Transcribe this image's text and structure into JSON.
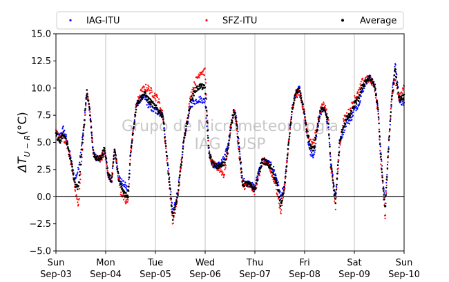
{
  "chart_data": {
    "type": "scatter",
    "ylabel_main": "ΔT",
    "ylabel_sub": "U − R",
    "ylabel_unit": "(°C)",
    "ylim": [
      -5.0,
      15.0
    ],
    "yticks": [
      "−5.0",
      "−2.5",
      "0.0",
      "2.5",
      "5.0",
      "7.5",
      "10.0",
      "12.5",
      "15.0"
    ],
    "ytick_values": [
      -5.0,
      -2.5,
      0.0,
      2.5,
      5.0,
      7.5,
      10.0,
      12.5,
      15.0
    ],
    "xlim": [
      0,
      7
    ],
    "xticks": [
      {
        "day": "Sun",
        "date": "Sep-03"
      },
      {
        "day": "Mon",
        "date": "Sep-04"
      },
      {
        "day": "Tue",
        "date": "Sep-05"
      },
      {
        "day": "Wed",
        "date": "Sep-06"
      },
      {
        "day": "Thu",
        "date": "Sep-07"
      },
      {
        "day": "Fri",
        "date": "Sep-08"
      },
      {
        "day": "Sat",
        "date": "Sep-09"
      },
      {
        "day": "Sun",
        "date": "Sep-10"
      }
    ],
    "grid": "x-vertical",
    "zero_line": true,
    "legend_position": "top",
    "watermark_lines": [
      "Grupo de Micrometeorologia",
      "IAG / USP"
    ],
    "series": [
      {
        "name": "IAG-ITU",
        "color": "#0000ff",
        "offset": 0.45,
        "noise": 0.3,
        "x": [
          0.0,
          0.08,
          0.15,
          0.22,
          0.3,
          0.38,
          0.45,
          0.55,
          0.62,
          0.68,
          0.75,
          0.82,
          0.9,
          0.98,
          1.05,
          1.12,
          1.18,
          1.25,
          1.3,
          1.35,
          1.4,
          1.45,
          1.5,
          1.55,
          1.62,
          1.7,
          1.78,
          1.85,
          1.95,
          2.05,
          2.15,
          2.25,
          2.35,
          2.45,
          2.52,
          2.58,
          2.65,
          2.72,
          2.8,
          2.9,
          3.0,
          3.08,
          3.15,
          3.22,
          3.3,
          3.38,
          3.45,
          3.52,
          3.58,
          3.62,
          3.68,
          3.75,
          3.82,
          3.9,
          4.0,
          4.08,
          4.15,
          4.22,
          4.3,
          4.38,
          4.45,
          4.52,
          4.6,
          4.68,
          4.75,
          4.82,
          4.9,
          4.98,
          5.05,
          5.12,
          5.18,
          5.25,
          5.32,
          5.4,
          5.48,
          5.52,
          5.55,
          5.62,
          5.7,
          5.78,
          5.85,
          5.92,
          6.0,
          6.08,
          6.15,
          6.22,
          6.3,
          6.38,
          6.42,
          6.48,
          6.52,
          6.58,
          6.62,
          6.68,
          6.75,
          6.82,
          6.9,
          7.0
        ],
        "y": [
          5.8,
          5.5,
          6.3,
          5.2,
          3.5,
          1.5,
          2.5,
          6.0,
          9.5,
          8.0,
          4.0,
          3.5,
          3.5,
          4.2,
          2.0,
          1.5,
          4.5,
          2.0,
          1.5,
          1.2,
          1.0,
          0.5,
          4.0,
          6.0,
          8.5,
          9.0,
          9.2,
          8.5,
          8.0,
          7.8,
          7.5,
          3.0,
          -1.5,
          0.5,
          3.0,
          5.5,
          7.0,
          8.5,
          8.8,
          9.0,
          8.8,
          4.0,
          3.0,
          2.8,
          3.0,
          3.5,
          4.5,
          6.5,
          8.0,
          7.5,
          5.0,
          1.5,
          1.3,
          1.2,
          0.8,
          2.5,
          3.3,
          3.2,
          3.0,
          2.5,
          1.5,
          0.0,
          1.0,
          5.0,
          8.0,
          9.5,
          10.0,
          8.0,
          5.5,
          4.0,
          3.5,
          6.0,
          7.8,
          8.0,
          6.5,
          3.5,
          2.5,
          0.0,
          5.0,
          6.0,
          7.0,
          7.0,
          8.0,
          8.5,
          9.5,
          10.5,
          11.0,
          10.5,
          10.0,
          8.0,
          5.0,
          1.0,
          -0.5,
          4.0,
          9.0,
          12.5,
          9.0,
          8.5
        ]
      },
      {
        "name": "SFZ-ITU",
        "color": "#ff0000",
        "offset": -0.35,
        "noise": 0.35,
        "x": [
          0.0,
          0.08,
          0.15,
          0.22,
          0.3,
          0.38,
          0.45,
          0.55,
          0.62,
          0.68,
          0.75,
          0.82,
          0.9,
          0.98,
          1.05,
          1.12,
          1.18,
          1.25,
          1.3,
          1.35,
          1.4,
          1.45,
          1.5,
          1.55,
          1.62,
          1.7,
          1.78,
          1.85,
          1.95,
          2.05,
          2.15,
          2.25,
          2.35,
          2.45,
          2.52,
          2.58,
          2.65,
          2.72,
          2.8,
          2.9,
          3.0,
          3.08,
          3.15,
          3.22,
          3.3,
          3.38,
          3.45,
          3.52,
          3.58,
          3.62,
          3.68,
          3.75,
          3.82,
          3.9,
          4.0,
          4.08,
          4.15,
          4.22,
          4.3,
          4.38,
          4.45,
          4.52,
          4.6,
          4.68,
          4.75,
          4.82,
          4.9,
          4.98,
          5.05,
          5.12,
          5.18,
          5.25,
          5.32,
          5.4,
          5.48,
          5.52,
          5.55,
          5.62,
          5.7,
          5.78,
          5.85,
          5.92,
          6.0,
          6.08,
          6.15,
          6.22,
          6.3,
          6.38,
          6.42,
          6.48,
          6.52,
          6.58,
          6.62,
          6.68,
          6.75,
          6.82,
          6.9,
          7.0
        ],
        "y": [
          5.8,
          5.5,
          5.2,
          4.8,
          3.2,
          1.0,
          -1.0,
          5.5,
          9.5,
          8.0,
          4.0,
          3.5,
          3.5,
          4.2,
          2.0,
          1.5,
          4.5,
          2.0,
          0.5,
          0.0,
          -0.5,
          -0.5,
          4.0,
          6.0,
          8.5,
          9.5,
          10.0,
          10.0,
          9.5,
          9.0,
          7.5,
          2.5,
          -2.5,
          0.0,
          3.0,
          5.5,
          7.5,
          9.5,
          10.5,
          11.5,
          11.5,
          4.0,
          3.0,
          2.8,
          2.5,
          2.0,
          4.0,
          6.5,
          8.0,
          7.0,
          4.0,
          1.0,
          1.0,
          1.0,
          0.5,
          2.0,
          3.3,
          3.2,
          2.5,
          1.5,
          0.5,
          -1.5,
          1.0,
          5.0,
          8.0,
          9.5,
          9.5,
          8.0,
          6.0,
          5.0,
          5.0,
          6.5,
          8.0,
          8.5,
          7.0,
          3.0,
          2.0,
          -1.0,
          4.5,
          7.0,
          7.5,
          8.0,
          9.0,
          9.5,
          10.5,
          10.8,
          10.8,
          10.5,
          9.8,
          7.5,
          4.0,
          0.5,
          -2.0,
          4.0,
          9.0,
          11.0,
          9.0,
          10.0
        ]
      },
      {
        "name": "Average",
        "color": "#000000",
        "offset": 0.0,
        "noise": 0.25,
        "x": [
          0.0,
          0.08,
          0.15,
          0.22,
          0.3,
          0.38,
          0.45,
          0.55,
          0.62,
          0.68,
          0.75,
          0.82,
          0.9,
          0.98,
          1.05,
          1.12,
          1.18,
          1.25,
          1.3,
          1.35,
          1.4,
          1.45,
          1.5,
          1.55,
          1.62,
          1.7,
          1.78,
          1.85,
          1.95,
          2.05,
          2.15,
          2.25,
          2.35,
          2.45,
          2.52,
          2.58,
          2.65,
          2.72,
          2.8,
          2.9,
          3.0,
          3.08,
          3.15,
          3.22,
          3.3,
          3.38,
          3.45,
          3.52,
          3.58,
          3.62,
          3.68,
          3.75,
          3.82,
          3.9,
          4.0,
          4.08,
          4.15,
          4.22,
          4.3,
          4.38,
          4.45,
          4.52,
          4.6,
          4.68,
          4.75,
          4.82,
          4.9,
          4.98,
          5.05,
          5.12,
          5.18,
          5.25,
          5.32,
          5.4,
          5.48,
          5.52,
          5.55,
          5.62,
          5.7,
          5.78,
          5.85,
          5.92,
          6.0,
          6.08,
          6.15,
          6.22,
          6.3,
          6.38,
          6.42,
          6.48,
          6.52,
          6.58,
          6.62,
          6.68,
          6.75,
          6.82,
          6.9,
          7.0
        ],
        "y": [
          5.8,
          5.0,
          5.8,
          5.0,
          3.3,
          1.2,
          0.7,
          5.8,
          9.8,
          8.0,
          4.0,
          3.5,
          3.5,
          4.5,
          2.0,
          1.5,
          4.5,
          2.0,
          1.0,
          0.5,
          0.2,
          0.0,
          4.0,
          6.0,
          8.5,
          9.0,
          9.5,
          9.0,
          8.5,
          8.0,
          7.5,
          2.8,
          -2.0,
          0.2,
          3.0,
          5.5,
          7.2,
          9.0,
          9.8,
          10.2,
          10.0,
          4.0,
          3.0,
          2.8,
          2.8,
          3.0,
          4.2,
          6.5,
          8.0,
          7.2,
          4.5,
          1.2,
          1.2,
          1.1,
          0.6,
          2.2,
          3.3,
          3.2,
          2.8,
          2.0,
          1.0,
          -0.8,
          1.0,
          5.0,
          8.0,
          9.5,
          9.8,
          8.0,
          5.8,
          4.5,
          4.3,
          6.2,
          7.9,
          8.2,
          6.8,
          3.2,
          2.2,
          -0.5,
          4.8,
          6.5,
          7.2,
          7.5,
          8.5,
          9.0,
          10.0,
          10.6,
          10.9,
          10.5,
          9.9,
          7.8,
          4.5,
          0.8,
          -1.2,
          4.0,
          9.0,
          11.8,
          9.0,
          9.2
        ]
      }
    ]
  }
}
